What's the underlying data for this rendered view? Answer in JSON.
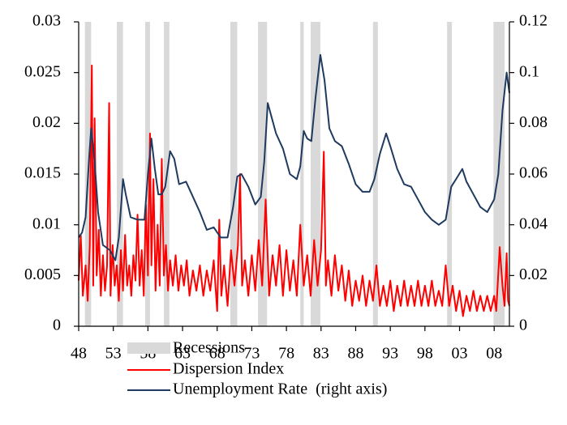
{
  "chart_data": {
    "type": "line",
    "xlim": [
      1948,
      2010.2
    ],
    "xticks": [
      {
        "value": 1948,
        "label": "48"
      },
      {
        "value": 1953,
        "label": "53"
      },
      {
        "value": 1958,
        "label": "58"
      },
      {
        "value": 1963,
        "label": "63"
      },
      {
        "value": 1968,
        "label": "68"
      },
      {
        "value": 1973,
        "label": "73"
      },
      {
        "value": 1978,
        "label": "78"
      },
      {
        "value": 1983,
        "label": "83"
      },
      {
        "value": 1988,
        "label": "88"
      },
      {
        "value": 1993,
        "label": "93"
      },
      {
        "value": 1998,
        "label": "98"
      },
      {
        "value": 2003,
        "label": "03"
      },
      {
        "value": 2008,
        "label": "08"
      }
    ],
    "ylim": [
      0,
      0.03
    ],
    "yticks": [
      0,
      0.005,
      0.01,
      0.015,
      0.02,
      0.025,
      0.03
    ],
    "y2lim": [
      0,
      0.12
    ],
    "y2ticks": [
      0,
      0.02,
      0.04,
      0.06,
      0.08,
      0.1,
      0.12
    ],
    "recessions": {
      "name": "Recessions",
      "color": "#d9d9d9",
      "periods": [
        [
          1948.9,
          1949.8
        ],
        [
          1953.5,
          1954.4
        ],
        [
          1957.6,
          1958.3
        ],
        [
          1960.3,
          1961.1
        ],
        [
          1969.9,
          1970.9
        ],
        [
          1973.9,
          1975.2
        ],
        [
          1980.0,
          1980.5
        ],
        [
          1981.5,
          1982.9
        ],
        [
          1990.5,
          1991.2
        ],
        [
          2001.2,
          2001.9
        ],
        [
          2007.9,
          2009.5
        ]
      ]
    },
    "series": [
      {
        "name": "Dispersion Index",
        "color": "#ff0000",
        "x": [
          1948.0,
          1948.3,
          1948.6,
          1949.0,
          1949.3,
          1949.6,
          1949.9,
          1950.1,
          1950.3,
          1950.6,
          1950.9,
          1951.2,
          1951.5,
          1951.8,
          1952.1,
          1952.4,
          1952.6,
          1952.9,
          1953.2,
          1953.5,
          1953.8,
          1954.1,
          1954.4,
          1954.7,
          1955.0,
          1955.3,
          1955.6,
          1955.9,
          1956.2,
          1956.5,
          1956.8,
          1957.1,
          1957.4,
          1957.7,
          1958.0,
          1958.3,
          1958.5,
          1958.8,
          1959.1,
          1959.4,
          1959.7,
          1960.0,
          1960.3,
          1960.6,
          1960.9,
          1961.2,
          1961.6,
          1962.0,
          1962.4,
          1962.8,
          1963.2,
          1963.6,
          1964.0,
          1964.5,
          1965.0,
          1965.5,
          1966.0,
          1966.5,
          1967.0,
          1967.5,
          1968.0,
          1968.3,
          1968.6,
          1969.0,
          1969.5,
          1970.0,
          1970.5,
          1971.0,
          1971.3,
          1971.6,
          1972.0,
          1972.5,
          1973.0,
          1973.5,
          1974.0,
          1974.5,
          1975.0,
          1975.5,
          1976.0,
          1976.5,
          1977.0,
          1977.5,
          1978.0,
          1978.5,
          1979.0,
          1979.5,
          1980.0,
          1980.5,
          1981.0,
          1981.5,
          1982.0,
          1982.5,
          1983.0,
          1983.4,
          1983.7,
          1984.0,
          1984.5,
          1985.0,
          1985.5,
          1986.0,
          1986.5,
          1987.0,
          1987.5,
          1988.0,
          1988.5,
          1989.0,
          1989.5,
          1990.0,
          1990.5,
          1991.0,
          1991.5,
          1992.0,
          1992.5,
          1993.0,
          1993.5,
          1994.0,
          1994.5,
          1995.0,
          1995.5,
          1996.0,
          1996.5,
          1997.0,
          1997.5,
          1998.0,
          1998.5,
          1999.0,
          1999.5,
          2000.0,
          2000.5,
          2001.0,
          2001.5,
          2002.0,
          2002.5,
          2003.0,
          2003.5,
          2004.0,
          2004.5,
          2005.0,
          2005.5,
          2006.0,
          2006.5,
          2007.0,
          2007.5,
          2008.0,
          2008.3,
          2008.8,
          2009.2,
          2009.5,
          2009.8,
          2010.0,
          2010.2
        ],
        "values": [
          0.0045,
          0.009,
          0.003,
          0.006,
          0.0025,
          0.008,
          0.0257,
          0.004,
          0.0205,
          0.005,
          0.0095,
          0.003,
          0.007,
          0.0035,
          0.006,
          0.022,
          0.003,
          0.008,
          0.004,
          0.006,
          0.0025,
          0.0075,
          0.0035,
          0.009,
          0.004,
          0.006,
          0.003,
          0.007,
          0.0045,
          0.011,
          0.004,
          0.0075,
          0.003,
          0.012,
          0.005,
          0.019,
          0.006,
          0.0145,
          0.0035,
          0.01,
          0.004,
          0.0165,
          0.005,
          0.008,
          0.0035,
          0.0065,
          0.004,
          0.007,
          0.0035,
          0.006,
          0.004,
          0.0065,
          0.003,
          0.0055,
          0.0035,
          0.006,
          0.003,
          0.0055,
          0.0035,
          0.0065,
          0.0015,
          0.0105,
          0.003,
          0.006,
          0.002,
          0.0075,
          0.004,
          0.008,
          0.015,
          0.004,
          0.0065,
          0.003,
          0.007,
          0.0035,
          0.0085,
          0.004,
          0.0125,
          0.003,
          0.007,
          0.004,
          0.008,
          0.003,
          0.0075,
          0.0035,
          0.0065,
          0.003,
          0.01,
          0.004,
          0.007,
          0.003,
          0.0085,
          0.004,
          0.0075,
          0.0172,
          0.004,
          0.0065,
          0.003,
          0.007,
          0.0035,
          0.006,
          0.0025,
          0.0055,
          0.002,
          0.0045,
          0.0025,
          0.005,
          0.002,
          0.0045,
          0.0025,
          0.006,
          0.002,
          0.004,
          0.002,
          0.0045,
          0.0015,
          0.004,
          0.002,
          0.0045,
          0.002,
          0.004,
          0.002,
          0.0045,
          0.002,
          0.004,
          0.002,
          0.0045,
          0.002,
          0.0035,
          0.002,
          0.006,
          0.002,
          0.004,
          0.0015,
          0.0035,
          0.001,
          0.003,
          0.0015,
          0.0035,
          0.0015,
          0.003,
          0.0015,
          0.003,
          0.0015,
          0.003,
          0.0015,
          0.0078,
          0.004,
          0.002,
          0.0072,
          0.0025,
          0.002
        ]
      },
      {
        "name": "Unemployment Rate  (right axis)",
        "color": "#1f3a5f",
        "axis": "y2",
        "x": [
          1948.0,
          1948.5,
          1949.0,
          1949.5,
          1949.8,
          1950.3,
          1950.8,
          1951.5,
          1952.5,
          1953.3,
          1953.8,
          1954.4,
          1954.8,
          1955.5,
          1956.5,
          1957.5,
          1958.0,
          1958.5,
          1959.0,
          1959.5,
          1960.0,
          1960.5,
          1961.2,
          1961.8,
          1962.5,
          1963.5,
          1964.5,
          1965.5,
          1966.5,
          1967.5,
          1968.5,
          1969.5,
          1970.3,
          1970.9,
          1971.5,
          1972.5,
          1973.5,
          1974.3,
          1974.8,
          1975.3,
          1975.8,
          1976.5,
          1977.5,
          1978.5,
          1979.5,
          1980.0,
          1980.5,
          1981.0,
          1981.6,
          1982.2,
          1982.9,
          1983.5,
          1984.2,
          1985.0,
          1986.0,
          1987.0,
          1988.0,
          1989.0,
          1990.0,
          1990.7,
          1991.5,
          1992.4,
          1993.0,
          1994.0,
          1995.0,
          1996.0,
          1997.0,
          1998.0,
          1999.0,
          2000.0,
          2001.0,
          2001.8,
          2002.5,
          2003.4,
          2004.0,
          2005.0,
          2006.0,
          2007.0,
          2008.0,
          2008.6,
          2009.2,
          2009.8,
          2010.2
        ],
        "values": [
          0.035,
          0.037,
          0.043,
          0.066,
          0.078,
          0.065,
          0.045,
          0.032,
          0.03,
          0.026,
          0.035,
          0.058,
          0.052,
          0.043,
          0.042,
          0.042,
          0.06,
          0.074,
          0.062,
          0.052,
          0.052,
          0.055,
          0.069,
          0.066,
          0.056,
          0.057,
          0.051,
          0.045,
          0.038,
          0.039,
          0.035,
          0.035,
          0.047,
          0.059,
          0.06,
          0.055,
          0.048,
          0.051,
          0.065,
          0.088,
          0.083,
          0.076,
          0.07,
          0.06,
          0.058,
          0.063,
          0.077,
          0.074,
          0.073,
          0.09,
          0.107,
          0.097,
          0.078,
          0.073,
          0.071,
          0.064,
          0.056,
          0.053,
          0.053,
          0.058,
          0.068,
          0.076,
          0.071,
          0.062,
          0.056,
          0.055,
          0.05,
          0.045,
          0.042,
          0.04,
          0.042,
          0.055,
          0.058,
          0.062,
          0.057,
          0.052,
          0.047,
          0.045,
          0.05,
          0.06,
          0.085,
          0.1,
          0.092
        ]
      }
    ]
  }
}
